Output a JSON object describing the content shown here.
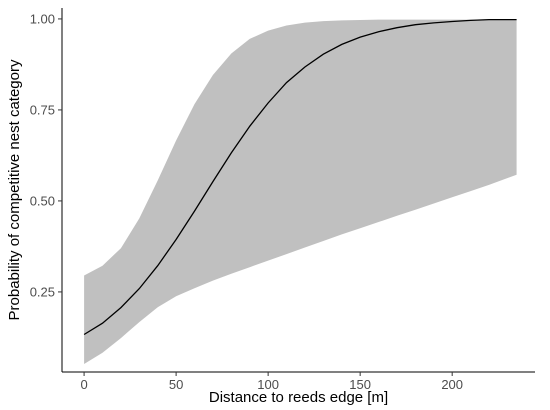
{
  "chart_data": {
    "type": "line",
    "xlabel": "Distance to reeds edge [m]",
    "ylabel": "Probability of competitive nest category",
    "xlim": [
      -12,
      245
    ],
    "ylim": [
      0.03,
      1.03
    ],
    "x_ticks": [
      0,
      50,
      100,
      150,
      200
    ],
    "x_tick_labels": [
      "0",
      "50",
      "100",
      "150",
      "200"
    ],
    "y_ticks": [
      0.25,
      0.5,
      0.75,
      1.0
    ],
    "y_tick_labels": [
      "0.25",
      "0.50",
      "0.75",
      "1.00"
    ],
    "grid": false,
    "colors": {
      "band": "#c0c0c0",
      "line": "#000000",
      "axis": "#000000",
      "tick_text": "#4d4d4d"
    },
    "series": [
      {
        "x": [
          0,
          10,
          20,
          30,
          40,
          50,
          60,
          70,
          80,
          90,
          100,
          110,
          120,
          130,
          140,
          150,
          160,
          170,
          180,
          190,
          200,
          210,
          220,
          235
        ],
        "values": [
          0.133,
          0.164,
          0.207,
          0.259,
          0.322,
          0.394,
          0.472,
          0.553,
          0.632,
          0.705,
          0.769,
          0.825,
          0.868,
          0.903,
          0.93,
          0.95,
          0.965,
          0.976,
          0.984,
          0.989,
          0.993,
          0.996,
          0.998,
          0.998
        ],
        "lower": [
          0.052,
          0.083,
          0.123,
          0.167,
          0.208,
          0.238,
          0.26,
          0.281,
          0.3,
          0.318,
          0.336,
          0.354,
          0.372,
          0.39,
          0.408,
          0.425,
          0.442,
          0.459,
          0.476,
          0.493,
          0.51,
          0.527,
          0.544,
          0.572
        ],
        "upper": [
          0.295,
          0.322,
          0.37,
          0.452,
          0.556,
          0.666,
          0.766,
          0.846,
          0.905,
          0.945,
          0.968,
          0.982,
          0.99,
          0.994,
          0.996,
          0.997,
          0.998,
          0.998,
          0.998,
          0.998,
          0.998,
          0.998,
          0.998,
          0.998
        ]
      }
    ]
  }
}
